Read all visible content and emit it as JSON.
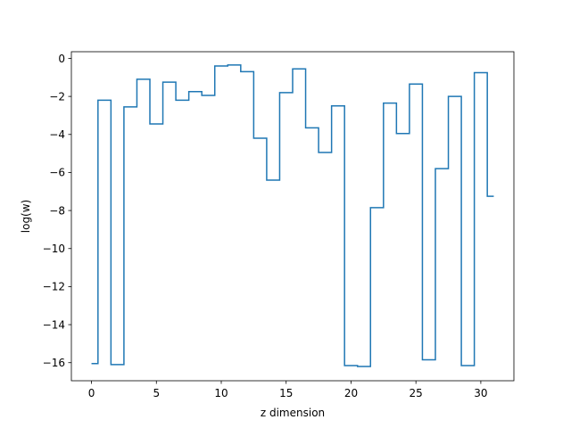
{
  "chart_data": {
    "type": "line",
    "drawstyle": "steps-mid",
    "title": "",
    "xlabel": "z dimension",
    "ylabel": "log(w)",
    "xlim": [
      -1.55,
      32.55
    ],
    "ylim": [
      -16.95,
      0.35
    ],
    "xticks": [
      0,
      5,
      10,
      15,
      20,
      25,
      30
    ],
    "xtick_labels": [
      "0",
      "5",
      "10",
      "15",
      "20",
      "25",
      "30"
    ],
    "yticks": [
      0,
      -2,
      -4,
      -6,
      -8,
      -10,
      -12,
      -14,
      -16
    ],
    "ytick_labels": [
      "0",
      "−2",
      "−4",
      "−6",
      "−8",
      "−10",
      "−12",
      "−14",
      "−16"
    ],
    "grid": false,
    "legend": "none",
    "series": [
      {
        "color": "#1f77b4",
        "x": [
          0,
          1,
          2,
          3,
          4,
          5,
          6,
          7,
          8,
          9,
          10,
          11,
          12,
          13,
          14,
          15,
          16,
          17,
          18,
          19,
          20,
          21,
          22,
          23,
          24,
          25,
          26,
          27,
          28,
          29,
          30,
          31
        ],
        "y": [
          -16.05,
          -2.2,
          -16.1,
          -2.55,
          -1.1,
          -3.45,
          -1.25,
          -2.2,
          -1.75,
          -1.95,
          -0.4,
          -0.35,
          -0.7,
          -4.2,
          -6.4,
          -1.8,
          -0.55,
          -3.65,
          -4.95,
          -2.5,
          -16.15,
          -16.2,
          -7.85,
          -2.35,
          -3.95,
          -1.35,
          -15.85,
          -5.8,
          -2.0,
          -16.15,
          -0.75,
          -7.25
        ]
      }
    ]
  }
}
